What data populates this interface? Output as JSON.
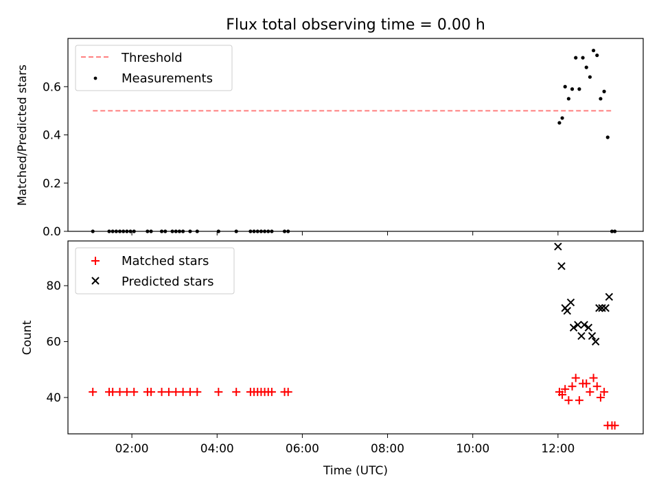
{
  "chart_data": [
    {
      "type": "scatter",
      "title": "Flux total observing time = 0.00 h",
      "ylabel": "Matched/Predicted stars",
      "xlabel": "",
      "xlim": [
        "00:30",
        "14:00"
      ],
      "ylim": [
        0,
        0.8
      ],
      "grid": false,
      "legend_position": "top-left",
      "y_ticks": [
        0.0,
        0.2,
        0.4,
        0.6
      ],
      "y_tick_labels": [
        "0.0",
        "0.2",
        "0.4",
        "0.6"
      ],
      "x_ticks": [
        "02:00",
        "04:00",
        "06:00",
        "08:00",
        "10:00",
        "12:00"
      ],
      "series": [
        {
          "name": "Threshold",
          "kind": "line",
          "style": "dashed",
          "color": "#ff7f7f",
          "x": [
            "01:05",
            "13:15"
          ],
          "y": [
            0.5,
            0.5
          ]
        },
        {
          "name": "Measurements",
          "kind": "scatter",
          "marker": "dot",
          "color": "#000000",
          "x": [
            "01:05",
            "01:28",
            "01:33",
            "01:38",
            "01:43",
            "01:48",
            "01:53",
            "01:58",
            "02:03",
            "02:22",
            "02:27",
            "02:42",
            "02:47",
            "02:57",
            "03:02",
            "03:07",
            "03:12",
            "03:22",
            "03:32",
            "04:02",
            "04:27",
            "04:47",
            "04:52",
            "04:57",
            "05:02",
            "05:07",
            "05:12",
            "05:17",
            "05:35",
            "05:40",
            "12:02",
            "12:06",
            "12:10",
            "12:15",
            "12:20",
            "12:25",
            "12:30",
            "12:35",
            "12:40",
            "12:45",
            "12:50",
            "12:55",
            "13:00",
            "13:05",
            "13:10",
            "13:16",
            "13:20"
          ],
          "y": [
            0,
            0,
            0,
            0,
            0,
            0,
            0,
            0,
            0,
            0,
            0,
            0,
            0,
            0,
            0,
            0,
            0,
            0,
            0,
            0,
            0,
            0,
            0,
            0,
            0,
            0,
            0,
            0,
            0,
            0,
            0.45,
            0.47,
            0.6,
            0.55,
            0.59,
            0.72,
            0.59,
            0.72,
            0.68,
            0.64,
            0.75,
            0.73,
            0.55,
            0.58,
            0.39,
            0,
            0
          ]
        }
      ]
    },
    {
      "type": "scatter",
      "title": "",
      "ylabel": "Count",
      "xlabel": "Time (UTC)",
      "xlim": [
        "00:30",
        "14:00"
      ],
      "ylim": [
        27,
        96
      ],
      "grid": false,
      "legend_position": "top-left",
      "y_ticks": [
        40,
        60,
        80
      ],
      "y_tick_labels": [
        "40",
        "60",
        "80"
      ],
      "x_ticks": [
        "02:00",
        "04:00",
        "06:00",
        "08:00",
        "10:00",
        "12:00"
      ],
      "x_tick_labels": [
        "02:00",
        "04:00",
        "06:00",
        "08:00",
        "10:00",
        "12:00"
      ],
      "series": [
        {
          "name": "Matched stars",
          "kind": "scatter",
          "marker": "plus",
          "color": "#ff0000",
          "x": [
            "01:05",
            "01:28",
            "01:33",
            "01:43",
            "01:53",
            "02:03",
            "02:22",
            "02:27",
            "02:42",
            "02:52",
            "03:02",
            "03:12",
            "03:22",
            "03:32",
            "04:02",
            "04:27",
            "04:47",
            "04:52",
            "04:57",
            "05:02",
            "05:07",
            "05:12",
            "05:17",
            "05:35",
            "05:40",
            "12:02",
            "12:06",
            "12:10",
            "12:15",
            "12:20",
            "12:25",
            "12:30",
            "12:35",
            "12:40",
            "12:45",
            "12:50",
            "12:55",
            "13:00",
            "13:05",
            "13:10",
            "13:16",
            "13:20"
          ],
          "y": [
            42,
            42,
            42,
            42,
            42,
            42,
            42,
            42,
            42,
            42,
            42,
            42,
            42,
            42,
            42,
            42,
            42,
            42,
            42,
            42,
            42,
            42,
            42,
            42,
            42,
            42,
            41,
            43,
            39,
            44,
            47,
            39,
            45,
            45,
            42,
            47,
            44,
            40,
            42,
            30,
            30,
            30
          ]
        },
        {
          "name": "Predicted stars",
          "kind": "scatter",
          "marker": "x",
          "color": "#000000",
          "x": [
            "12:00",
            "12:05",
            "12:10",
            "12:13",
            "12:18",
            "12:22",
            "12:28",
            "12:33",
            "12:37",
            "12:43",
            "12:48",
            "12:53",
            "12:58",
            "13:02",
            "13:07",
            "13:12"
          ],
          "y": [
            94,
            87,
            72,
            71,
            74,
            65,
            66,
            62,
            66,
            65,
            62,
            60,
            72,
            72,
            72,
            76
          ]
        }
      ]
    }
  ]
}
